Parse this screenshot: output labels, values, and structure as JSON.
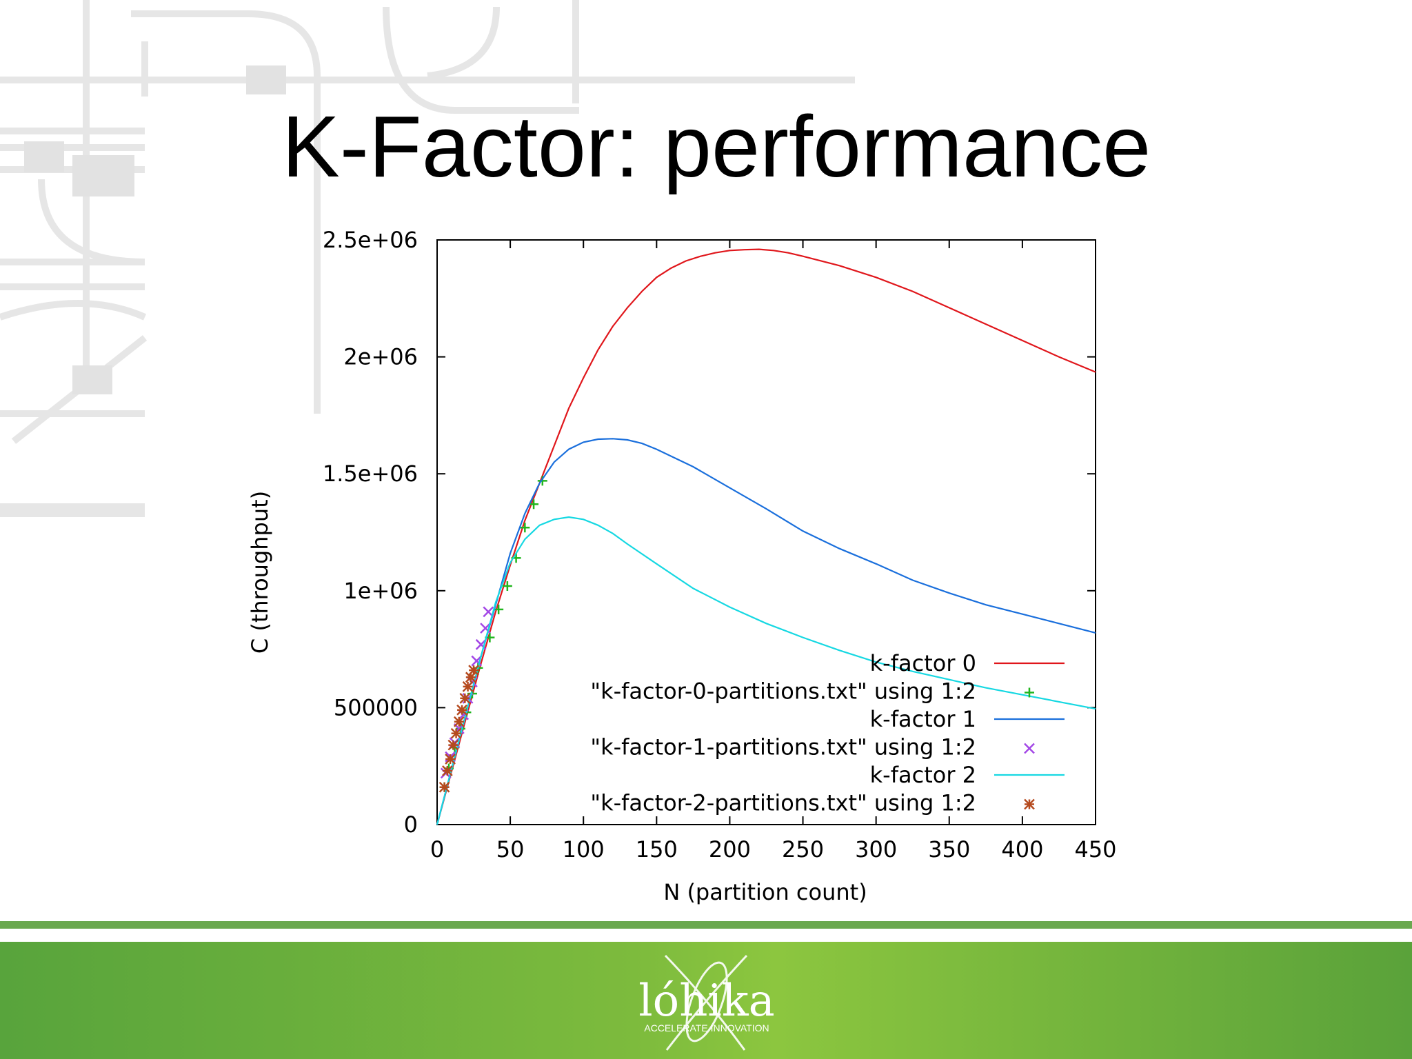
{
  "slide": {
    "title": "K-Factor: performance",
    "logo_text": "lóhika",
    "logo_tagline": "ACCELERATE INNOVATION"
  },
  "colors": {
    "footer_green": "#6aa84f",
    "k0": "#e0161b",
    "k1": "#1a6fdc",
    "k2": "#16d8e2",
    "pts0": "#21b51e",
    "pts1": "#a347e6",
    "pts2": "#b54a1e"
  },
  "chart_data": {
    "type": "line",
    "xlabel": "N (partition count)",
    "ylabel": "C (throughput)",
    "xlim": [
      0,
      450
    ],
    "ylim": [
      0,
      2500000
    ],
    "xticks": [
      0,
      50,
      100,
      150,
      200,
      250,
      300,
      350,
      400,
      450
    ],
    "yticks": [
      0,
      500000,
      1000000,
      1500000,
      2000000,
      2500000
    ],
    "xtick_labels": [
      "0",
      "50",
      "100",
      "150",
      "200",
      "250",
      "300",
      "350",
      "400",
      "450"
    ],
    "ytick_labels": [
      "0",
      "500000",
      "1e+06",
      "1.5e+06",
      "2e+06",
      "2.5e+06"
    ],
    "grid": false,
    "legend_position": "bottom-right",
    "series": [
      {
        "name": "k-factor 0",
        "style": "line",
        "color": "#e0161b",
        "x": [
          0,
          10,
          20,
          30,
          40,
          50,
          60,
          70,
          80,
          90,
          100,
          110,
          120,
          130,
          140,
          150,
          160,
          170,
          180,
          190,
          200,
          210,
          220,
          230,
          240,
          250,
          275,
          300,
          325,
          350,
          375,
          400,
          425,
          450
        ],
        "y": [
          0,
          230000,
          460000,
          690000,
          910000,
          1110000,
          1300000,
          1460000,
          1620000,
          1780000,
          1910000,
          2030000,
          2130000,
          2210000,
          2280000,
          2340000,
          2380000,
          2410000,
          2430000,
          2445000,
          2455000,
          2458000,
          2460000,
          2455000,
          2445000,
          2430000,
          2390000,
          2340000,
          2280000,
          2210000,
          2140000,
          2070000,
          2000000,
          1935000
        ]
      },
      {
        "name": "\"k-factor-0-partitions.txt\" using 1:2",
        "style": "points",
        "marker": "plus",
        "color": "#21b51e",
        "x": [
          5,
          8,
          12,
          16,
          20,
          24,
          28,
          36,
          42,
          48,
          54,
          60,
          66,
          72
        ],
        "y": [
          160000,
          240000,
          330000,
          410000,
          480000,
          560000,
          670000,
          800000,
          920000,
          1020000,
          1140000,
          1270000,
          1370000,
          1470000
        ]
      },
      {
        "name": "k-factor 1",
        "style": "line",
        "color": "#1a6fdc",
        "x": [
          0,
          10,
          20,
          30,
          40,
          50,
          60,
          70,
          80,
          90,
          100,
          110,
          120,
          130,
          140,
          150,
          175,
          200,
          225,
          250,
          275,
          300,
          325,
          350,
          375,
          400,
          425,
          450
        ],
        "y": [
          0,
          240000,
          480000,
          720000,
          940000,
          1160000,
          1330000,
          1460000,
          1550000,
          1605000,
          1635000,
          1648000,
          1650000,
          1645000,
          1630000,
          1605000,
          1530000,
          1440000,
          1350000,
          1255000,
          1180000,
          1115000,
          1045000,
          990000,
          940000,
          900000,
          860000,
          820000
        ]
      },
      {
        "name": "\"k-factor-1-partitions.txt\" using 1:2",
        "style": "points",
        "marker": "cross",
        "color": "#a347e6",
        "x": [
          6,
          9,
          12,
          15,
          18,
          21,
          24,
          27,
          30,
          33,
          35
        ],
        "y": [
          220000,
          290000,
          350000,
          410000,
          470000,
          540000,
          610000,
          700000,
          770000,
          840000,
          910000
        ]
      },
      {
        "name": "k-factor 2",
        "style": "line",
        "color": "#16d8e2",
        "x": [
          0,
          10,
          20,
          30,
          40,
          50,
          60,
          70,
          80,
          90,
          100,
          110,
          120,
          130,
          150,
          175,
          200,
          225,
          250,
          275,
          300,
          325,
          350,
          375,
          400,
          425,
          450
        ],
        "y": [
          0,
          240000,
          480000,
          720000,
          950000,
          1120000,
          1220000,
          1280000,
          1305000,
          1315000,
          1305000,
          1280000,
          1245000,
          1200000,
          1115000,
          1010000,
          930000,
          860000,
          800000,
          745000,
          695000,
          655000,
          620000,
          585000,
          555000,
          525000,
          495000
        ]
      },
      {
        "name": "\"k-factor-2-partitions.txt\" using 1:2",
        "style": "points",
        "marker": "star",
        "color": "#b54a1e",
        "x": [
          5,
          7,
          9,
          11,
          13,
          15,
          17,
          19,
          21,
          23,
          25
        ],
        "y": [
          160000,
          230000,
          280000,
          340000,
          390000,
          440000,
          490000,
          540000,
          590000,
          630000,
          660000
        ]
      }
    ]
  }
}
